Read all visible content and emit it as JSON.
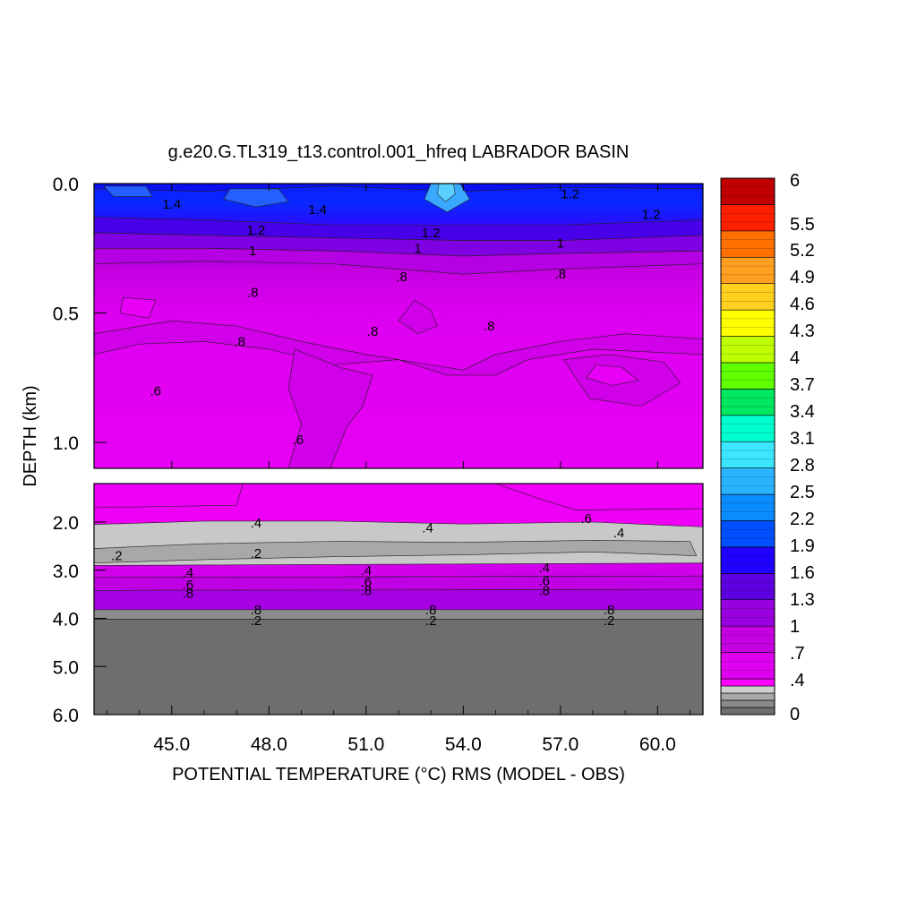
{
  "chart_data": {
    "type": "heatmap",
    "title": "g.e20.G.TL319_t13.control.001_hfreq LABRADOR BASIN",
    "xlabel": "POTENTIAL TEMPERATURE (°C) RMS (MODEL - OBS)",
    "ylabel": "DEPTH (km)",
    "xlim": [
      42.6,
      61.4
    ],
    "x_ticks": [
      {
        "value": 45.0,
        "label": "45.0"
      },
      {
        "value": 48.0,
        "label": "48.0"
      },
      {
        "value": 51.0,
        "label": "51.0"
      },
      {
        "value": 54.0,
        "label": "54.0"
      },
      {
        "value": 57.0,
        "label": "57.0"
      },
      {
        "value": 60.0,
        "label": "60.0"
      }
    ],
    "upper_panel": {
      "ylim": [
        0.0,
        1.1
      ],
      "y_ticks": [
        {
          "value": 0.0,
          "label": "0.0"
        },
        {
          "value": 0.5,
          "label": "0.5"
        },
        {
          "value": 1.0,
          "label": "1.0"
        }
      ]
    },
    "lower_panel": {
      "ylim": [
        1.2,
        6.0
      ],
      "y_ticks": [
        {
          "value": 2.0,
          "label": "2.0"
        },
        {
          "value": 3.0,
          "label": "3.0"
        },
        {
          "value": 4.0,
          "label": "4.0"
        },
        {
          "value": 5.0,
          "label": "5.0"
        },
        {
          "value": 6.0,
          "label": "6.0"
        }
      ]
    },
    "colorbar": {
      "range": [
        0,
        6
      ],
      "labels": [
        "6",
        "5.5",
        "5.2",
        "4.9",
        "4.6",
        "4.3",
        "4",
        "3.7",
        "3.4",
        "3.1",
        "2.8",
        "2.5",
        "2.2",
        "1.9",
        "1.6",
        "1.3",
        "1",
        ".7",
        ".4",
        "0"
      ],
      "colors": [
        "#6e6e6e",
        "#8a8a8a",
        "#a8a8a8",
        "#d0d0d0",
        "#ff00ff",
        "#e000f0",
        "#c400e0",
        "#9800e0",
        "#5c00e0",
        "#2000ff",
        "#0050ff",
        "#0a8cff",
        "#2ab4ff",
        "#3ce6ff",
        "#00ffd0",
        "#00e860",
        "#60ff00",
        "#c0ff00",
        "#ffff00",
        "#ffd020",
        "#ffa020",
        "#ff7000",
        "#ff2000",
        "#c00000"
      ]
    },
    "contour_labels": {
      "upper": [
        {
          "x": 45.0,
          "depth": 0.08,
          "text": "1.4"
        },
        {
          "x": 47.6,
          "depth": 0.18,
          "text": "1.2"
        },
        {
          "x": 47.5,
          "depth": 0.26,
          "text": "1"
        },
        {
          "x": 47.5,
          "depth": 0.42,
          "text": ".8"
        },
        {
          "x": 47.1,
          "depth": 0.61,
          "text": ".8"
        },
        {
          "x": 44.5,
          "depth": 0.8,
          "text": ".6"
        },
        {
          "x": 48.9,
          "depth": 0.99,
          "text": ".6"
        },
        {
          "x": 49.5,
          "depth": 0.1,
          "text": "1.4"
        },
        {
          "x": 53.0,
          "depth": 0.19,
          "text": "1.2"
        },
        {
          "x": 52.6,
          "depth": 0.25,
          "text": "1"
        },
        {
          "x": 52.1,
          "depth": 0.36,
          "text": ".8"
        },
        {
          "x": 51.2,
          "depth": 0.57,
          "text": ".8"
        },
        {
          "x": 54.8,
          "depth": 0.55,
          "text": ".8"
        },
        {
          "x": 57.3,
          "depth": 0.04,
          "text": "1.2"
        },
        {
          "x": 57.0,
          "depth": 0.23,
          "text": "1"
        },
        {
          "x": 57.0,
          "depth": 0.35,
          "text": ".8"
        },
        {
          "x": 59.8,
          "depth": 0.12,
          "text": "1.2"
        }
      ],
      "lower": [
        {
          "x": 47.6,
          "depth": 2.02,
          "text": ".4"
        },
        {
          "x": 43.3,
          "depth": 2.7,
          "text": ".2"
        },
        {
          "x": 47.6,
          "depth": 2.65,
          "text": ".2"
        },
        {
          "x": 45.5,
          "depth": 3.05,
          "text": ".4"
        },
        {
          "x": 45.5,
          "depth": 3.3,
          "text": ".6"
        },
        {
          "x": 45.5,
          "depth": 3.48,
          "text": ".8"
        },
        {
          "x": 51.0,
          "depth": 3.0,
          "text": ".4"
        },
        {
          "x": 51.0,
          "depth": 3.25,
          "text": ".6"
        },
        {
          "x": 51.0,
          "depth": 3.42,
          "text": ".8"
        },
        {
          "x": 56.5,
          "depth": 2.95,
          "text": ".4"
        },
        {
          "x": 56.5,
          "depth": 3.22,
          "text": ".6"
        },
        {
          "x": 56.5,
          "depth": 3.42,
          "text": ".8"
        },
        {
          "x": 52.9,
          "depth": 2.12,
          "text": ".4"
        },
        {
          "x": 57.8,
          "depth": 1.93,
          "text": ".6"
        },
        {
          "x": 58.8,
          "depth": 2.22,
          "text": ".4"
        },
        {
          "x": 47.6,
          "depth": 3.82,
          "text": ".8"
        },
        {
          "x": 47.6,
          "depth": 4.05,
          "text": ".2"
        },
        {
          "x": 53.0,
          "depth": 3.82,
          "text": ".8"
        },
        {
          "x": 53.0,
          "depth": 4.05,
          "text": ".2"
        },
        {
          "x": 58.5,
          "depth": 3.82,
          "text": ".8"
        },
        {
          "x": 58.5,
          "depth": 4.05,
          "text": ".2"
        }
      ]
    }
  }
}
